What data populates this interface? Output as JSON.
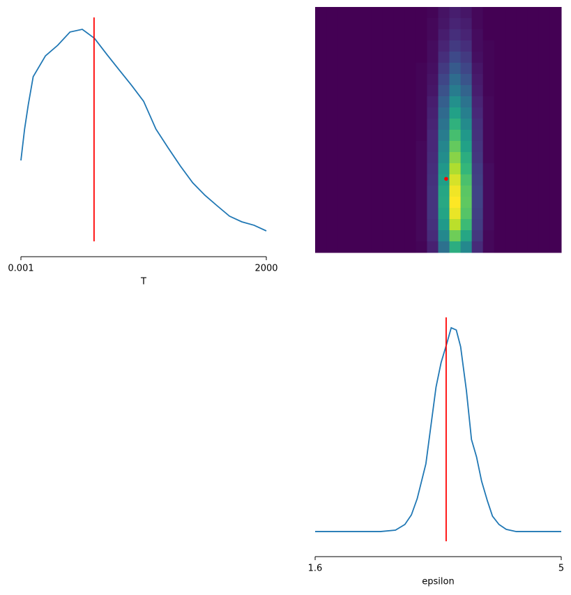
{
  "chart_data": [
    {
      "type": "line",
      "xlabel": "T",
      "color": "#1f77b4",
      "x": [
        0.001,
        30,
        60,
        100,
        200,
        300,
        400,
        500,
        600,
        700,
        800,
        900,
        1000,
        1100,
        1200,
        1300,
        1400,
        1500,
        1600,
        1700,
        1800,
        1900,
        2000
      ],
      "values": [
        0.375,
        0.503,
        0.602,
        0.716,
        0.801,
        0.844,
        0.898,
        0.909,
        0.872,
        0.807,
        0.744,
        0.682,
        0.616,
        0.503,
        0.426,
        0.352,
        0.284,
        0.233,
        0.19,
        0.148,
        0.125,
        0.111,
        0.088
      ],
      "xlim": [
        0.001,
        2000
      ],
      "xticks": [
        0.001,
        2000
      ],
      "ylim": [
        0,
        1
      ],
      "reference_x": 596,
      "reference_color": "red"
    },
    {
      "type": "heatmap",
      "colormap": "viridis",
      "xlim": [
        1.6,
        5
      ],
      "ylim": [
        0.001,
        2000
      ],
      "point": {
        "x": 3.41,
        "y": 600
      },
      "point_color": "red",
      "values": [
        [
          0,
          0,
          0,
          0,
          0,
          0,
          0,
          0,
          0,
          0,
          0.01,
          0.05,
          0.08,
          0.06,
          0.02,
          0,
          0,
          0,
          0,
          0,
          0,
          0
        ],
        [
          0,
          0,
          0,
          0,
          0,
          0,
          0,
          0,
          0,
          0,
          0.02,
          0.06,
          0.1,
          0.08,
          0.02,
          0,
          0,
          0,
          0,
          0,
          0,
          0
        ],
        [
          0,
          0,
          0,
          0,
          0,
          0,
          0,
          0,
          0,
          0,
          0.02,
          0.08,
          0.13,
          0.1,
          0.03,
          0,
          0,
          0,
          0,
          0,
          0,
          0
        ],
        [
          0,
          0,
          0,
          0,
          0,
          0,
          0,
          0,
          0,
          0,
          0.03,
          0.1,
          0.17,
          0.13,
          0.03,
          0.01,
          0,
          0,
          0,
          0,
          0,
          0
        ],
        [
          0,
          0,
          0,
          0,
          0,
          0,
          0,
          0,
          0,
          0,
          0.03,
          0.13,
          0.22,
          0.17,
          0.04,
          0.01,
          0,
          0,
          0,
          0,
          0,
          0
        ],
        [
          0,
          0,
          0,
          0,
          0,
          0,
          0,
          0,
          0,
          0.01,
          0.04,
          0.17,
          0.28,
          0.21,
          0.06,
          0.01,
          0,
          0,
          0,
          0,
          0,
          0
        ],
        [
          0,
          0,
          0,
          0,
          0,
          0,
          0,
          0,
          0,
          0.01,
          0.05,
          0.21,
          0.35,
          0.26,
          0.07,
          0.01,
          0,
          0,
          0,
          0,
          0,
          0
        ],
        [
          0,
          0,
          0,
          0,
          0,
          0,
          0,
          0,
          0,
          0.01,
          0.06,
          0.25,
          0.42,
          0.32,
          0.08,
          0.01,
          0,
          0,
          0,
          0,
          0,
          0
        ],
        [
          0,
          0,
          0,
          0,
          0,
          0,
          0,
          0,
          0,
          0.01,
          0.08,
          0.3,
          0.5,
          0.38,
          0.1,
          0.02,
          0,
          0,
          0,
          0,
          0,
          0
        ],
        [
          0,
          0,
          0,
          0,
          0,
          0,
          0,
          0,
          0,
          0.01,
          0.09,
          0.34,
          0.57,
          0.43,
          0.11,
          0.02,
          0,
          0,
          0,
          0,
          0,
          0
        ],
        [
          0,
          0,
          0,
          0,
          0,
          0,
          0,
          0,
          0,
          0.01,
          0.1,
          0.38,
          0.64,
          0.48,
          0.13,
          0.02,
          0,
          0,
          0,
          0,
          0,
          0
        ],
        [
          0,
          0,
          0,
          0,
          0,
          0,
          0,
          0,
          0,
          0.01,
          0.11,
          0.42,
          0.7,
          0.53,
          0.14,
          0.02,
          0,
          0,
          0,
          0,
          0,
          0
        ],
        [
          0,
          0,
          0,
          0,
          0,
          0,
          0,
          0,
          0,
          0.02,
          0.11,
          0.46,
          0.76,
          0.57,
          0.15,
          0.02,
          0,
          0,
          0,
          0,
          0,
          0
        ],
        [
          0,
          0,
          0,
          0,
          0,
          0,
          0,
          0,
          0,
          0.02,
          0.12,
          0.49,
          0.82,
          0.62,
          0.16,
          0.02,
          0,
          0,
          0,
          0,
          0,
          0
        ],
        [
          0,
          0,
          0,
          0,
          0,
          0,
          0,
          0,
          0,
          0.02,
          0.13,
          0.53,
          0.88,
          0.66,
          0.18,
          0.03,
          0,
          0,
          0,
          0,
          0,
          0
        ],
        [
          0,
          0,
          0,
          0,
          0,
          0,
          0,
          0,
          0,
          0.02,
          0.14,
          0.56,
          0.94,
          0.71,
          0.19,
          0.03,
          0,
          0,
          0,
          0,
          0,
          0
        ],
        [
          0,
          0,
          0,
          0,
          0,
          0,
          0,
          0,
          0,
          0.02,
          0.15,
          0.59,
          0.98,
          0.74,
          0.2,
          0.03,
          0,
          0,
          0,
          0,
          0,
          0
        ],
        [
          0,
          0,
          0,
          0,
          0,
          0,
          0,
          0,
          0,
          0.02,
          0.15,
          0.6,
          1,
          0.75,
          0.2,
          0.03,
          0,
          0,
          0,
          0,
          0,
          0
        ],
        [
          0,
          0,
          0,
          0,
          0,
          0,
          0,
          0,
          0,
          0.02,
          0.15,
          0.58,
          0.97,
          0.73,
          0.19,
          0.03,
          0,
          0,
          0,
          0,
          0,
          0
        ],
        [
          0,
          0,
          0,
          0,
          0,
          0,
          0,
          0,
          0,
          0.02,
          0.14,
          0.54,
          0.9,
          0.68,
          0.18,
          0.03,
          0,
          0,
          0,
          0,
          0,
          0
        ],
        [
          0,
          0,
          0,
          0,
          0,
          0,
          0,
          0,
          0,
          0.02,
          0.12,
          0.47,
          0.78,
          0.59,
          0.16,
          0.02,
          0,
          0,
          0,
          0,
          0,
          0
        ],
        [
          0,
          0,
          0,
          0,
          0,
          0,
          0,
          0,
          0,
          0.01,
          0.09,
          0.37,
          0.62,
          0.47,
          0.12,
          0.02,
          0,
          0,
          0,
          0,
          0,
          0
        ]
      ]
    },
    {
      "type": "line",
      "xlabel": "epsilon",
      "color": "#1f77b4",
      "x": [
        1.6,
        2.5,
        2.71,
        2.84,
        2.93,
        3.01,
        3.13,
        3.2,
        3.27,
        3.34,
        3.42,
        3.48,
        3.55,
        3.61,
        3.69,
        3.76,
        3.83,
        3.9,
        3.98,
        4.05,
        4.14,
        4.24,
        4.38,
        5
      ],
      "values": [
        0.085,
        0.085,
        0.091,
        0.114,
        0.153,
        0.219,
        0.361,
        0.517,
        0.673,
        0.773,
        0.852,
        0.915,
        0.906,
        0.838,
        0.659,
        0.46,
        0.389,
        0.29,
        0.21,
        0.148,
        0.114,
        0.094,
        0.085,
        0.085
      ],
      "xlim": [
        1.6,
        5
      ],
      "xticks": [
        1.6,
        5
      ],
      "ylim": [
        0,
        1
      ],
      "reference_x": 3.41,
      "reference_color": "red"
    }
  ]
}
